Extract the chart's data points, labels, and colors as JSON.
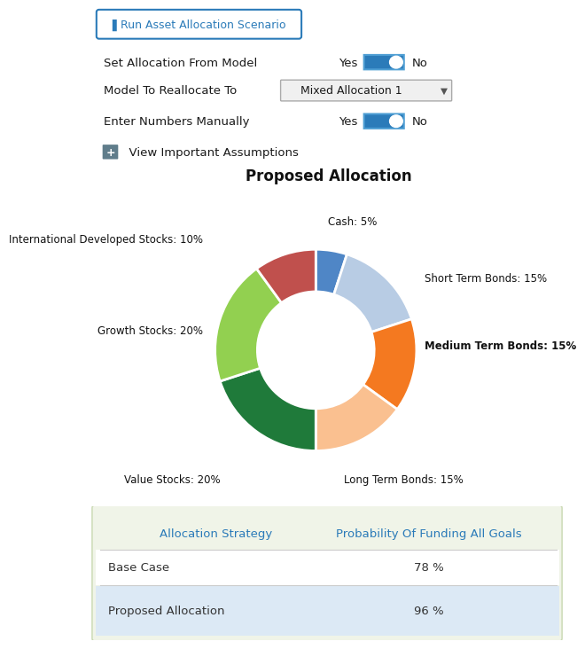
{
  "title": "Proposed Allocation",
  "slices": [
    {
      "label": "Cash: 5%",
      "value": 5,
      "color": "#4f86c6"
    },
    {
      "label": "Short Term Bonds: 15%",
      "value": 15,
      "color": "#b8cce4"
    },
    {
      "label": "Medium Term Bonds: 15%",
      "value": 15,
      "color": "#f47920"
    },
    {
      "label": "Long Term Bonds: 15%",
      "value": 15,
      "color": "#fac090"
    },
    {
      "label": "Value Stocks: 20%",
      "value": 20,
      "color": "#1f7a3a"
    },
    {
      "label": "Growth Stocks: 20%",
      "value": 20,
      "color": "#92d050"
    },
    {
      "label": "International Developed Stocks: 10%",
      "value": 10,
      "color": "#c0504d"
    }
  ],
  "button_text": "Run Asset Allocation Scenario",
  "row1_label": "Set Allocation From Model",
  "row1_yes": "Yes",
  "row1_no": "No",
  "row2_label": "Model To Reallocate To",
  "row2_dropdown": "Mixed Allocation 1",
  "row3_label": "Enter Numbers Manually",
  "row3_yes": "Yes",
  "row3_no": "No",
  "row4_link": "  View Important Assumptions",
  "table_header1": "Allocation Strategy",
  "table_header2": "Probability Of Funding All Goals",
  "table_row1_col1": "Base Case",
  "table_row1_col2": "78 %",
  "table_row2_col1": "Proposed Allocation",
  "table_row2_col2": "96 %",
  "bg_color": "#ffffff",
  "table_bg": "#f0f4e8",
  "table_row2_bg": "#ddeeff",
  "blue_color": "#2b7bb9",
  "header_blue": "#2b7bb9",
  "text_dark": "#1a1a1a",
  "toggle_border": "#4f9fd4"
}
